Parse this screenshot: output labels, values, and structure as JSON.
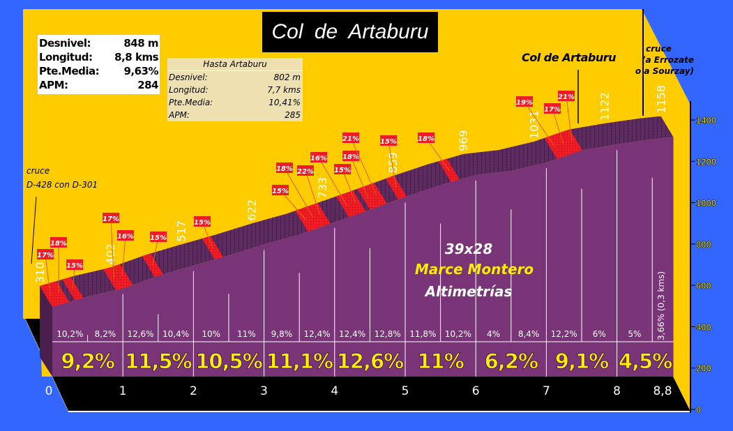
{
  "title": "Col  de  Artaburu",
  "stats": [
    {
      "label": "Desnivel:",
      "value": "848 m"
    },
    {
      "label": "Longitud:",
      "value": "8,8 kms"
    },
    {
      "label": "Pte.Media:",
      "value": "9,63%"
    },
    {
      "label": "APM:",
      "value": "284"
    }
  ],
  "hasta": {
    "title": "Hasta Artaburu",
    "rows": [
      {
        "label": "Desnivel:",
        "value": "802 m"
      },
      {
        "label": "Longitud:",
        "value": "7,7 kms"
      },
      {
        "label": "Pte.Media:",
        "value": "10,41%"
      },
      {
        "label": "APM:",
        "value": "285"
      }
    ]
  },
  "annotations": {
    "start_line1": "cruce",
    "start_line2": "D-428 con D-301",
    "summit": "Col de Artaburu",
    "end_line1": "cruce",
    "end_line2": "(a Errozate",
    "end_line3": "o a Sourzay)"
  },
  "credits": {
    "line1": "39x28",
    "line2": "Marce Montero",
    "line3": "Altimetrías"
  },
  "colors": {
    "background": "#3366ff",
    "wall": "#ffcc00",
    "profile": "#7a3478",
    "ramp": "#ee1c24",
    "floor": "#000000",
    "km_avg": "#ffee00"
  },
  "chart_data": {
    "type": "area",
    "xlabel": "",
    "ylabel": "",
    "x_ticks": [
      "0",
      "1",
      "2",
      "3",
      "4",
      "5",
      "6",
      "7",
      "8",
      "8,8"
    ],
    "km": [
      0,
      1,
      2,
      3,
      4,
      5,
      6,
      7,
      8,
      8.8
    ],
    "elevation": [
      310,
      402,
      517,
      622,
      733,
      859,
      969,
      1031,
      1122,
      1158
    ],
    "y_ticks": [
      0,
      200,
      400,
      600,
      800,
      1000,
      1200,
      1400
    ],
    "ylim": [
      0,
      1400
    ],
    "half_km_gradients": [
      "10,2%",
      "8,2%",
      "12,6%",
      "10,4%",
      "10%",
      "11%",
      "9,8%",
      "12,4%",
      "12,4%",
      "12,8%",
      "11,8%",
      "10,2%",
      "4%",
      "8,4%",
      "12,2%",
      "6%",
      "5%"
    ],
    "last_segment_gradient": "3,66% (0,3 kms)",
    "km_average_gradients": [
      "9,2%",
      "11,5%",
      "10,5%",
      "11,1%",
      "12,6%",
      "11%",
      "6,2%",
      "9,1%",
      "4,5%"
    ],
    "ramps": [
      {
        "pct": "17%",
        "km": 0.0
      },
      {
        "pct": "18%",
        "km": 0.12
      },
      {
        "pct": "15%",
        "km": 0.32
      },
      {
        "pct": "17%",
        "km": 0.9
      },
      {
        "pct": "16%",
        "km": 1.02
      },
      {
        "pct": "15%",
        "km": 1.45
      },
      {
        "pct": "15%",
        "km": 2.3
      },
      {
        "pct": "15%",
        "km": 3.62
      },
      {
        "pct": "18%",
        "km": 3.72
      },
      {
        "pct": "22%",
        "km": 3.82
      },
      {
        "pct": "16%",
        "km": 4.2
      },
      {
        "pct": "15%",
        "km": 4.32
      },
      {
        "pct": "18%",
        "km": 4.5
      },
      {
        "pct": "21%",
        "km": 4.62
      },
      {
        "pct": "15%",
        "km": 4.9
      },
      {
        "pct": "18%",
        "km": 5.65
      },
      {
        "pct": "19%",
        "km": 7.15
      },
      {
        "pct": "17%",
        "km": 7.27
      },
      {
        "pct": "21%",
        "km": 7.39
      }
    ]
  }
}
